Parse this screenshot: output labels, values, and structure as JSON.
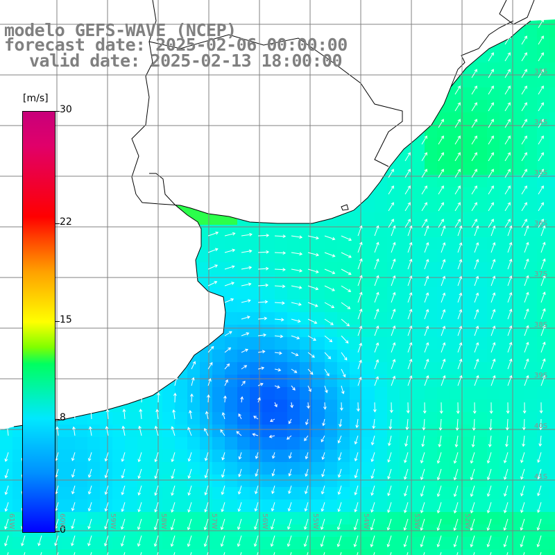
{
  "title": {
    "line1": "modelo GEFS-WAVE (NCEP)",
    "line2": "forecast date: 2025-02-06 00:00:00",
    "line3": "valid date: 2025-02-13 18:00:00"
  },
  "colorbar": {
    "unit": "[m/s]",
    "min": 0,
    "max": 30,
    "ticks": [
      {
        "value": 30,
        "label": "30"
      },
      {
        "value": 22,
        "label": "22"
      },
      {
        "value": 15,
        "label": "15"
      },
      {
        "value": 8,
        "label": "8"
      },
      {
        "value": 0,
        "label": "0"
      }
    ],
    "colors": [
      "#0000ff",
      "#00a0ff",
      "#00ffff",
      "#00ff60",
      "#ffff00",
      "#ff8000",
      "#ff0000",
      "#c8007a"
    ]
  },
  "map": {
    "variable": "wind speed and direction",
    "grid_lines": true,
    "latitude_labels": [
      "33S",
      "34S",
      "35S",
      "36S",
      "37S",
      "38S",
      "39S",
      "40S",
      "41S"
    ],
    "longitude_labels": [
      "61W",
      "60W",
      "59W",
      "58W",
      "57W",
      "56W",
      "55W",
      "54W",
      "53W",
      "52W"
    ],
    "land_color": "#ffffff",
    "coast_color": "#000000",
    "grid_color": "#808080",
    "arrow_color": "#ffffff"
  }
}
